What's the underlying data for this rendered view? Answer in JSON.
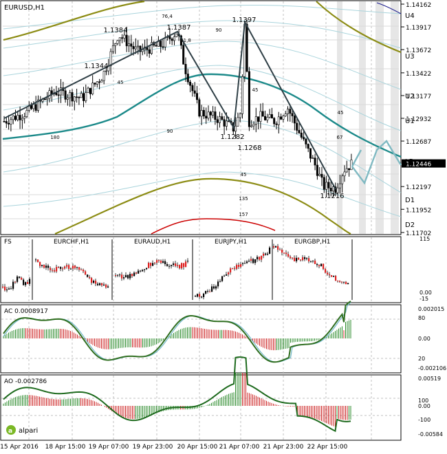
{
  "window": {
    "symbol_title": "EURUSD,H1"
  },
  "colors": {
    "candle_up": "#000000",
    "candle_down": "#000000",
    "fill_up": "#ffffff",
    "fill_down": "#ffffff",
    "grid": "#c0c0c0",
    "teal_ma": "#1c8a8a",
    "olive_band": "#8c8c14",
    "red_band": "#cc0000",
    "light_band": "#a9d4dc",
    "forecast": "#7fb9c2",
    "ac_up": "#2a8a2a",
    "ac_down": "#cc2222",
    "ac_line": "#2f6e1f",
    "ao_line": "#1d6a1d",
    "price_box": "#000000"
  },
  "price_axis": {
    "ticks": [
      "1.14162",
      "1.13917",
      "1.13672",
      "1.13422",
      "1.13177",
      "1.12932",
      "1.12687",
      "1.12446",
      "1.12197",
      "1.11952",
      "1.11702"
    ],
    "current_price": "1.12446",
    "levels": [
      "U4",
      "U3",
      "U2",
      "U1",
      "LB",
      "D1",
      "D2"
    ]
  },
  "time_axis": [
    "15 Apr 2016",
    "18 Apr 15:00",
    "19 Apr 07:00",
    "19 Apr 23:00",
    "20 Apr 15:00",
    "21 Apr 07:00",
    "21 Apr 23:00",
    "22 Apr 15:00"
  ],
  "annotations": {
    "prices": [
      "1.1384",
      "1.1387",
      "1.1397",
      "1.1344",
      "1.1282",
      "1.1268",
      "1.1216"
    ],
    "fib": [
      "76,4",
      "61,8",
      "45",
      "90",
      "90",
      "45",
      "45",
      "67",
      "45",
      "135",
      "157",
      "180"
    ]
  },
  "pane_fs": {
    "label": "FS",
    "symbols": [
      "EURCHF,H1",
      "EURAUD,H1",
      "EURJPY,H1",
      "EURGBP,H1"
    ],
    "axis": [
      "115",
      "0.00",
      "-15"
    ]
  },
  "pane_ac": {
    "label": "AC 0.0008917",
    "axis": [
      "0.002015",
      "80",
      "0.00",
      "20",
      "-0.002106"
    ]
  },
  "pane_ao": {
    "label": "AO -0.002786",
    "axis": [
      "0.00519",
      "100",
      "0.00",
      "-100",
      "-0.00584"
    ]
  },
  "brand": {
    "name": "alpari"
  },
  "chart_data": [
    {
      "type": "line",
      "title": "EURUSD,H1",
      "x": [
        "15 Apr 2016",
        "18 Apr 15:00",
        "19 Apr 07:00",
        "19 Apr 23:00",
        "20 Apr 15:00",
        "21 Apr 07:00",
        "21 Apr 23:00",
        "22 Apr 15:00"
      ],
      "series": [
        {
          "values": [
            1.1295,
            1.132,
            1.138,
            1.137,
            1.13,
            1.129,
            1.1285,
            1.1225
          ]
        }
      ],
      "key_points": [
        {
          "label": "1.1384",
          "value": 1.1384
        },
        {
          "label": "1.1387",
          "value": 1.1387
        },
        {
          "label": "1.1397",
          "value": 1.1397
        },
        {
          "label": "1.1344",
          "value": 1.1344
        },
        {
          "label": "1.1282",
          "value": 1.1282
        },
        {
          "label": "1.1268",
          "value": 1.1268
        },
        {
          "label": "1.1216",
          "value": 1.1216
        }
      ],
      "last": 1.12446,
      "ylim": [
        1.11702,
        1.14162
      ]
    },
    {
      "type": "bar",
      "title": "AC 0.0008917",
      "ylim": [
        -0.002106,
        0.002015
      ]
    },
    {
      "type": "line",
      "title": "AO -0.002786",
      "ylim": [
        -0.00584,
        0.00519
      ]
    }
  ]
}
